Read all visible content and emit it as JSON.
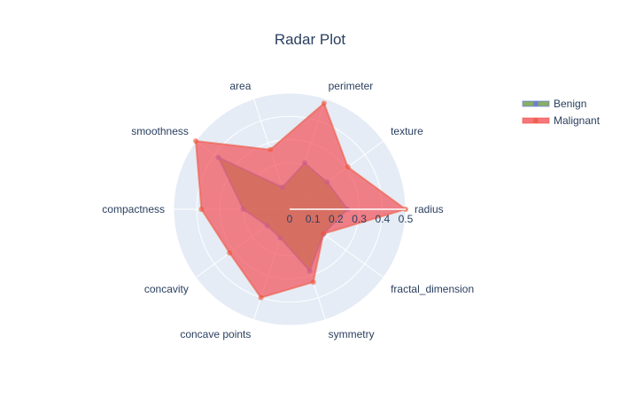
{
  "chart_data": {
    "type": "radar",
    "title": "Radar Plot",
    "axes": [
      "radius",
      "texture",
      "perimeter",
      "area",
      "smoothness",
      "compactness",
      "concavity",
      "concave points",
      "symmetry",
      "fractal_dimension"
    ],
    "range": [
      0,
      0.5
    ],
    "ticks": [
      "0",
      "0.1",
      "0.2",
      "0.3",
      "0.4",
      "0.5"
    ],
    "legend_position": "top-right",
    "series": [
      {
        "name": "Benign",
        "color": "#636efa",
        "fill": "#6a9a3f",
        "values": [
          0.25,
          0.2,
          0.21,
          0.1,
          0.38,
          0.2,
          0.12,
          0.13,
          0.28,
          0.18
        ]
      },
      {
        "name": "Malignant",
        "color": "#ef553b",
        "fill": "#f2545b",
        "values": [
          0.5,
          0.31,
          0.48,
          0.27,
          0.5,
          0.38,
          0.32,
          0.4,
          0.33,
          0.18
        ]
      }
    ]
  }
}
